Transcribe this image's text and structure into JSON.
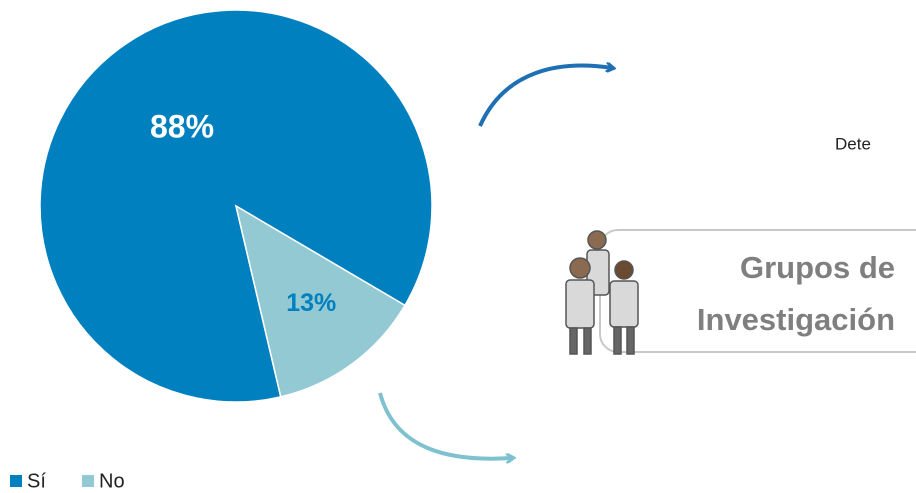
{
  "chart_data": {
    "type": "pie",
    "categories": [
      "Sí",
      "No"
    ],
    "values": [
      88,
      13
    ],
    "value_labels": [
      "88%",
      "13%"
    ],
    "colors": [
      "#0080bf",
      "#92c9d3"
    ],
    "legend": "bottom-left"
  },
  "side_text": "Dete",
  "box": {
    "lines": [
      "Grupos de",
      "Investigación"
    ]
  }
}
